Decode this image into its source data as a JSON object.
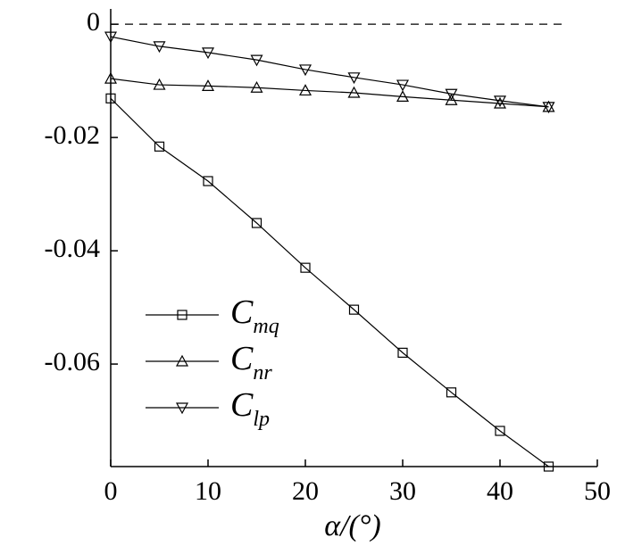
{
  "chart_data": {
    "type": "line",
    "x_label": "α/(°)",
    "x": [
      0,
      5,
      10,
      15,
      20,
      25,
      30,
      35,
      40,
      45
    ],
    "series": [
      {
        "name": "Cmq",
        "color": "#000000",
        "marker": "square",
        "values": [
          -0.0131,
          -0.0216,
          -0.0277,
          -0.0351,
          -0.043,
          -0.0504,
          -0.058,
          -0.065,
          -0.0718,
          -0.0781
        ]
      },
      {
        "name": "Cnr",
        "color": "#000000",
        "marker": "triangle-up",
        "values": [
          -0.0096,
          -0.0107,
          -0.0109,
          -0.0112,
          -0.0117,
          -0.0121,
          -0.0128,
          -0.0134,
          -0.014,
          -0.0146
        ]
      },
      {
        "name": "Clp",
        "color": "#000000",
        "marker": "triangle-down",
        "values": [
          -0.0022,
          -0.0039,
          -0.005,
          -0.0063,
          -0.008,
          -0.0094,
          -0.0107,
          -0.0123,
          -0.0135,
          -0.0146
        ]
      }
    ],
    "xlim": [
      0,
      50
    ],
    "xticks": [
      0,
      10,
      20,
      30,
      40,
      50
    ],
    "ylim": [
      -0.0781,
      0.0027
    ],
    "yticks": [
      0,
      -0.02,
      -0.04,
      -0.06
    ],
    "reference_line": 0,
    "grid": false,
    "legend": "lower left"
  }
}
